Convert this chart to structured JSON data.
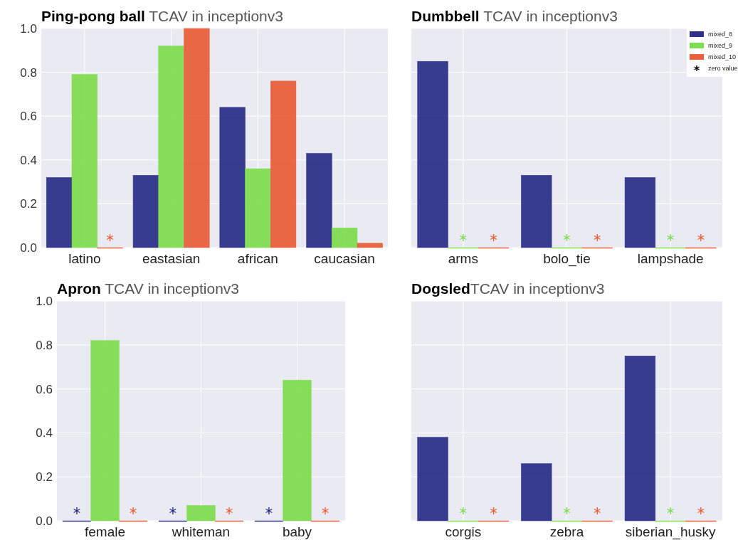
{
  "chart_data": [
    {
      "type": "bar",
      "title": "Ping-pong ball",
      "subtitle": " TCAV in inceptionv3",
      "categories": [
        "latino",
        "eastasian",
        "african",
        "caucasian"
      ],
      "series": [
        {
          "color": "#2e3389",
          "values": [
            0.32,
            0.33,
            0.64,
            0.43
          ]
        },
        {
          "color": "#80dc50",
          "values": [
            0.79,
            0.92,
            0.36,
            0.09
          ]
        },
        {
          "color": "#e8613c",
          "values": [
            0,
            1.0,
            0.76,
            0.02
          ]
        }
      ],
      "ylim": [
        0,
        1
      ],
      "yticks": [
        {
          "value": 0,
          "label": "0.0"
        },
        {
          "value": 0.2,
          "label": "0.2"
        },
        {
          "value": 0.4,
          "label": "0.4"
        },
        {
          "value": 0.6,
          "label": "0.6"
        },
        {
          "value": 0.8,
          "label": "0.8"
        },
        {
          "value": 1,
          "label": "1.0"
        }
      ],
      "grid": true,
      "legend": false
    },
    {
      "type": "bar",
      "title": "Dumbbell",
      "subtitle": " TCAV in inceptionv3",
      "categories": [
        "arms",
        "bolo_tie",
        "lampshade"
      ],
      "series": [
        {
          "name": "mixed_8",
          "color": "#2e3389",
          "values": [
            0.85,
            0.33,
            0.32
          ]
        },
        {
          "name": "mixed_9",
          "color": "#80dc50",
          "values": [
            0,
            0,
            0
          ]
        },
        {
          "name": "mixed_10",
          "color": "#e8613c",
          "values": [
            0,
            0,
            0
          ]
        }
      ],
      "annotations": [
        "zero value"
      ],
      "ylim": [
        0,
        1
      ],
      "yticks": [
        0,
        0.2,
        0.4,
        0.6,
        0.8,
        1
      ],
      "tick_labels": "x",
      "grid": true,
      "legend": "top right"
    },
    {
      "type": "bar",
      "title": "Apron",
      "subtitle": " TCAV in inceptionv3",
      "categories": [
        "female",
        "whiteman",
        "baby"
      ],
      "series": [
        {
          "color": "#2e3389",
          "values": [
            0,
            0,
            0
          ]
        },
        {
          "color": "#80dc50",
          "values": [
            0.82,
            0.07,
            0.64
          ]
        },
        {
          "color": "#e8613c",
          "values": [
            0,
            0,
            0
          ]
        }
      ],
      "ylim": [
        0,
        1
      ],
      "yticks": [
        {
          "value": 0,
          "label": "0.0"
        },
        {
          "value": 0.2,
          "label": "0.2"
        },
        {
          "value": 0.4,
          "label": "0.4"
        },
        {
          "value": 0.6,
          "label": "0.6"
        },
        {
          "value": 0.8,
          "label": "0.8"
        },
        {
          "value": 1,
          "label": "1.0"
        }
      ],
      "grid": true,
      "legend": false
    },
    {
      "type": "bar",
      "title": "Dogsled",
      "subtitle": "TCAV in inceptionv3",
      "categories": [
        "corgis",
        "zebra",
        "siberian_husky"
      ],
      "series": [
        {
          "color": "#2e3389",
          "values": [
            0.38,
            0.26,
            0.75
          ]
        },
        {
          "color": "#80dc50",
          "values": [
            0,
            0,
            0
          ]
        },
        {
          "color": "#e8613c",
          "values": [
            0,
            0,
            0
          ]
        }
      ],
      "ylim": [
        0,
        1
      ],
      "yticks": [
        0,
        0.2,
        0.4,
        0.6,
        0.8,
        1
      ],
      "tick_labels": "x",
      "grid": true,
      "legend": false
    }
  ]
}
